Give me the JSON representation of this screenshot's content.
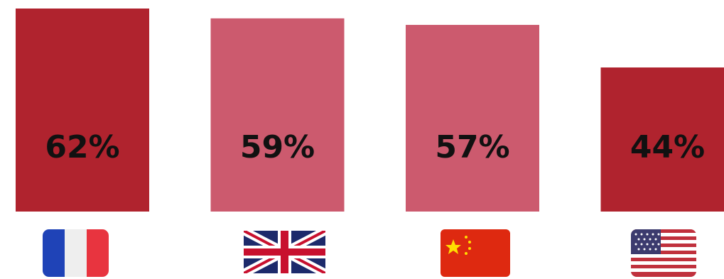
{
  "chart_data": {
    "type": "bar",
    "categories": [
      null,
      null,
      null,
      null
    ],
    "values": [
      62,
      59,
      57,
      44
    ],
    "value_labels": [
      "62%",
      "59%",
      "57%",
      "44%"
    ],
    "colors": [
      "#b0232e",
      "#cc5a6e",
      "#cc5a6e",
      "#b0232e"
    ]
  }
}
